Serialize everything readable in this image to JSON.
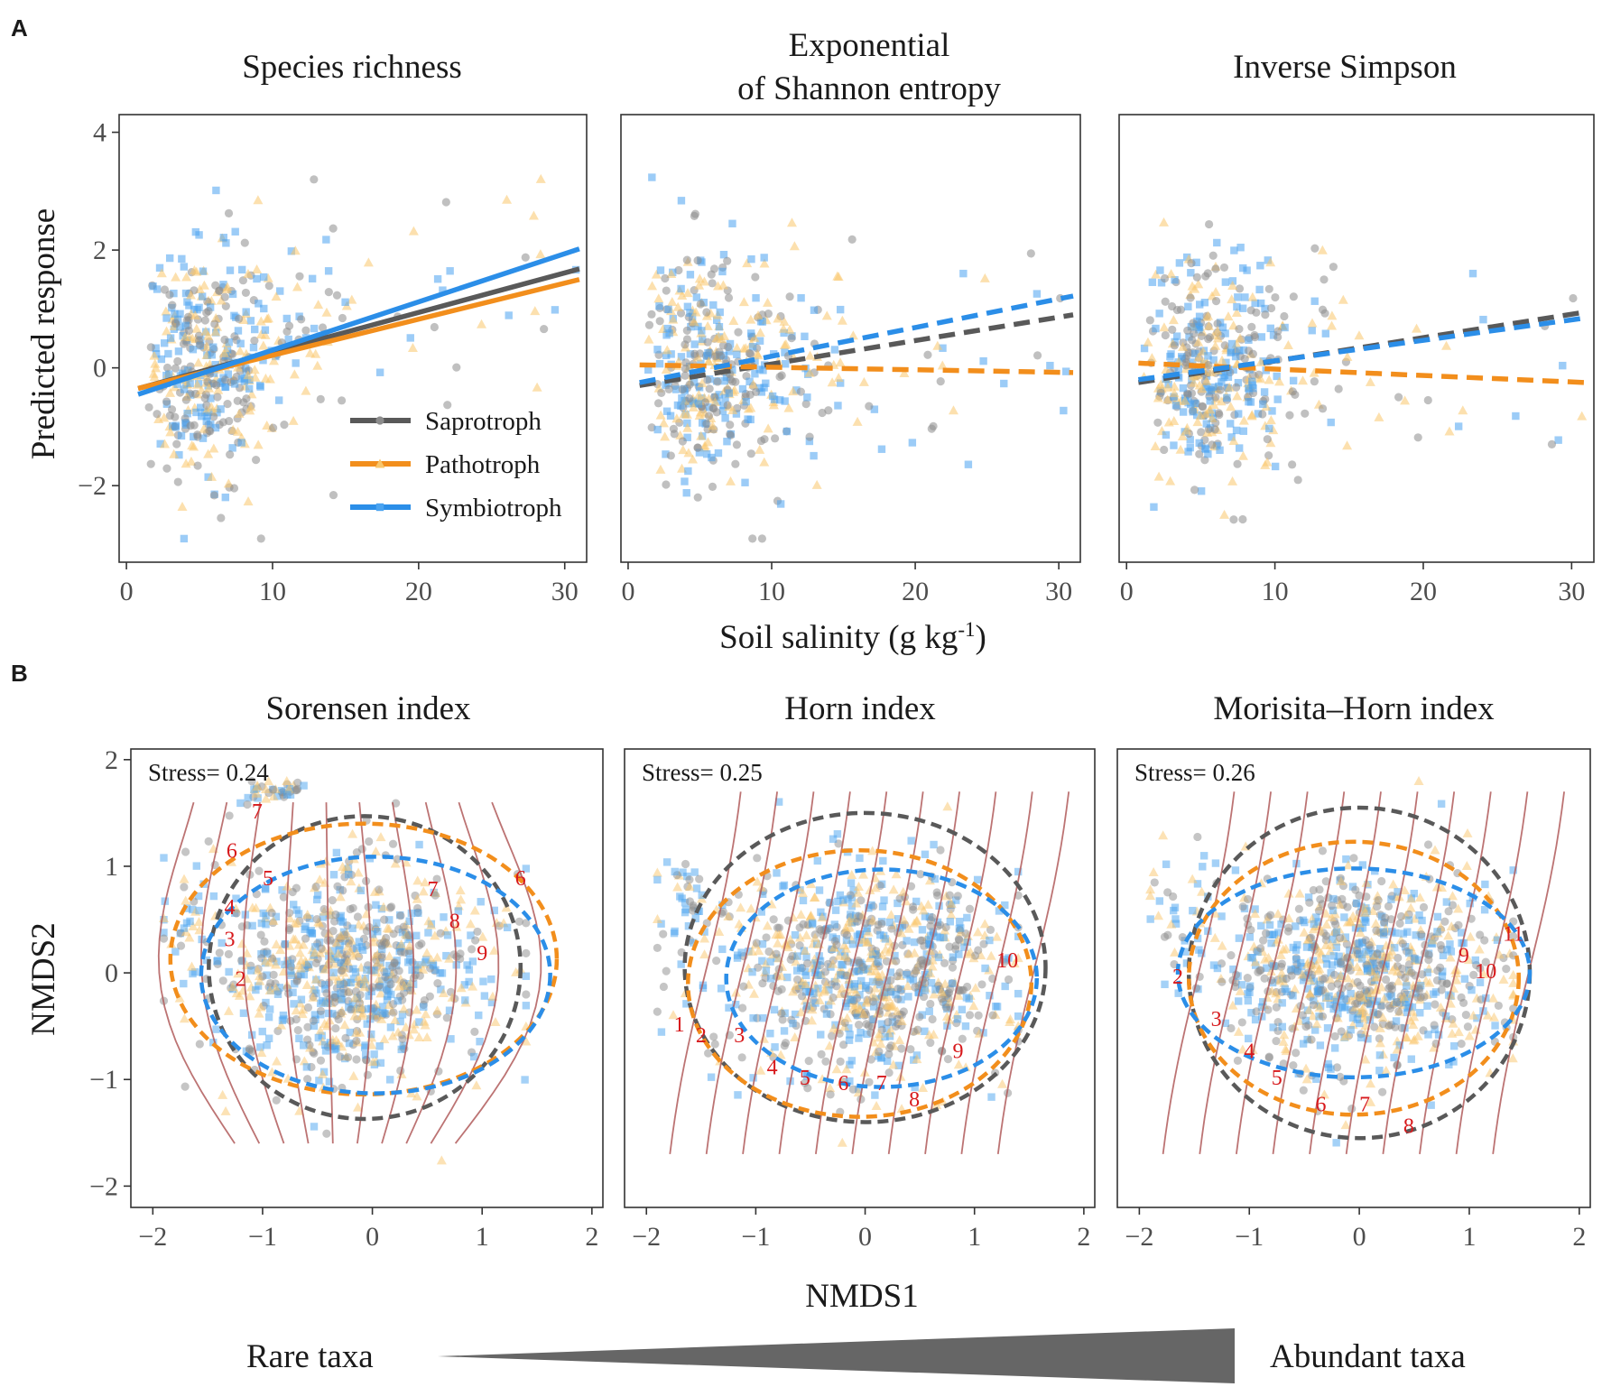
{
  "panel_labels": {
    "a": "A",
    "b": "B"
  },
  "shared": {
    "xlabel_a_main": "Soil salinity (g kg",
    "xlabel_a_sup": "-1",
    "xlabel_a_end": ")",
    "ylabel_a": "Predicted response",
    "xlabel_b": "NMDS1",
    "ylabel_b": "NMDS2",
    "gradient_left": "Rare taxa",
    "gradient_right": "Abundant taxa"
  },
  "colors": {
    "saprotroph": "#595959",
    "pathotroph": "#f28e1c",
    "symbiotroph": "#2b8ee8",
    "saprotroph_pt": "#8c8c8c",
    "pathotroph_pt": "#f9c66b",
    "symbiotroph_pt": "#4aa3f0",
    "contour": "#b05a5a",
    "contour_label": "#d7191c"
  },
  "legend": [
    {
      "key": "saprotroph",
      "label": "Saprotroph",
      "shape": "circle"
    },
    {
      "key": "pathotroph",
      "label": "Pathotroph",
      "shape": "triangle"
    },
    {
      "key": "symbiotroph",
      "label": "Symbiotroph",
      "shape": "square"
    }
  ],
  "chart_data": [
    {
      "type": "scatter",
      "id": "a1",
      "title_lines": [
        "Species richness"
      ],
      "xlim": [
        -0.5,
        31.5
      ],
      "ylim": [
        -3.3,
        4.3
      ],
      "xticks": [
        0,
        10,
        20,
        30
      ],
      "yticks": [
        -2,
        0,
        2,
        4
      ],
      "show_yticks": true,
      "show_legend": true,
      "line_style": "solid",
      "fits": [
        {
          "key": "saprotroph",
          "x": [
            0.8,
            31
          ],
          "y": [
            -0.35,
            1.68
          ]
        },
        {
          "key": "pathotroph",
          "x": [
            0.8,
            31
          ],
          "y": [
            -0.35,
            1.5
          ]
        },
        {
          "key": "symbiotroph",
          "x": [
            0.8,
            31
          ],
          "y": [
            -0.45,
            2.02
          ]
        }
      ]
    },
    {
      "type": "scatter",
      "id": "a2",
      "title_lines": [
        "Exponential",
        "of Shannon entropy"
      ],
      "xlim": [
        -0.5,
        31.5
      ],
      "ylim": [
        -3.3,
        4.3
      ],
      "xticks": [
        0,
        10,
        20,
        30
      ],
      "yticks": [
        -2,
        0,
        2,
        4
      ],
      "show_yticks": false,
      "show_legend": false,
      "line_style": "dashed",
      "fits": [
        {
          "key": "saprotroph",
          "x": [
            0.8,
            31
          ],
          "y": [
            -0.3,
            0.9
          ]
        },
        {
          "key": "pathotroph",
          "x": [
            0.8,
            31
          ],
          "y": [
            0.05,
            -0.08
          ]
        },
        {
          "key": "symbiotroph",
          "x": [
            0.8,
            31
          ],
          "y": [
            -0.25,
            1.22
          ]
        }
      ]
    },
    {
      "type": "scatter",
      "id": "a3",
      "title_lines": [
        "Inverse Simpson"
      ],
      "xlim": [
        -0.5,
        31.5
      ],
      "ylim": [
        -3.3,
        4.3
      ],
      "xticks": [
        0,
        10,
        20,
        30
      ],
      "yticks": [
        -2,
        0,
        2,
        4
      ],
      "show_yticks": false,
      "show_legend": false,
      "line_style": "dashed",
      "fits": [
        {
          "key": "saprotroph",
          "x": [
            0.8,
            31
          ],
          "y": [
            -0.25,
            0.95
          ]
        },
        {
          "key": "pathotroph",
          "x": [
            0.8,
            31
          ],
          "y": [
            0.08,
            -0.25
          ]
        },
        {
          "key": "symbiotroph",
          "x": [
            0.8,
            31
          ],
          "y": [
            -0.2,
            0.85
          ]
        }
      ]
    },
    {
      "type": "scatter",
      "id": "b1",
      "title_lines": [
        "Sorensen index"
      ],
      "stress": "Stress= 0.24",
      "xlim": [
        -2.2,
        2.1
      ],
      "ylim": [
        -2.2,
        2.1
      ],
      "xticks": [
        -2,
        -1,
        0,
        1,
        2
      ],
      "yticks": [
        -2,
        -1,
        0,
        1,
        2
      ],
      "show_yticks": true,
      "ellipses": [
        {
          "key": "saprotroph",
          "cx": -0.07,
          "cy": 0.05,
          "rx": 1.42,
          "ry": 1.42
        },
        {
          "key": "pathotroph",
          "cx": -0.08,
          "cy": 0.13,
          "rx": 1.76,
          "ry": 1.27
        },
        {
          "key": "symbiotroph",
          "cx": 0.03,
          "cy": -0.02,
          "rx": 1.59,
          "ry": 1.11
        }
      ],
      "contour_labels": [
        "7",
        "6",
        "5",
        "4",
        "3",
        "2",
        "7",
        "8",
        "9",
        "6"
      ]
    },
    {
      "type": "scatter",
      "id": "b2",
      "title_lines": [
        "Horn index"
      ],
      "stress": "Stress= 0.25",
      "xlim": [
        -2.2,
        2.1
      ],
      "ylim": [
        -2.2,
        2.1
      ],
      "xticks": [
        -2,
        -1,
        0,
        1,
        2
      ],
      "yticks": [
        -2,
        -1,
        0,
        1,
        2
      ],
      "show_yticks": false,
      "ellipses": [
        {
          "key": "saprotroph",
          "cx": 0.0,
          "cy": 0.05,
          "rx": 1.65,
          "ry": 1.45
        },
        {
          "key": "pathotroph",
          "cx": -0.05,
          "cy": -0.1,
          "rx": 1.57,
          "ry": 1.25
        },
        {
          "key": "symbiotroph",
          "cx": 0.15,
          "cy": -0.05,
          "rx": 1.42,
          "ry": 1.02
        }
      ],
      "contour_labels": [
        "1",
        "2",
        "3",
        "4",
        "5",
        "6",
        "7",
        "8",
        "9",
        "10"
      ]
    },
    {
      "type": "scatter",
      "id": "b3",
      "title_lines": [
        "Morisita–Horn index"
      ],
      "stress": "Stress= 0.26",
      "xlim": [
        -2.2,
        2.1
      ],
      "ylim": [
        -2.2,
        2.1
      ],
      "xticks": [
        -2,
        -1,
        0,
        1,
        2
      ],
      "yticks": [
        -2,
        -1,
        0,
        1,
        2
      ],
      "show_yticks": false,
      "ellipses": [
        {
          "key": "saprotroph",
          "cx": 0.0,
          "cy": 0.0,
          "rx": 1.55,
          "ry": 1.55
        },
        {
          "key": "pathotroph",
          "cx": -0.05,
          "cy": -0.05,
          "rx": 1.5,
          "ry": 1.28
        },
        {
          "key": "symbiotroph",
          "cx": -0.05,
          "cy": 0.0,
          "rx": 1.6,
          "ry": 0.98
        }
      ],
      "contour_labels": [
        "2",
        "3",
        "4",
        "5",
        "6",
        "7",
        "8",
        "9",
        "10",
        "11"
      ]
    }
  ]
}
